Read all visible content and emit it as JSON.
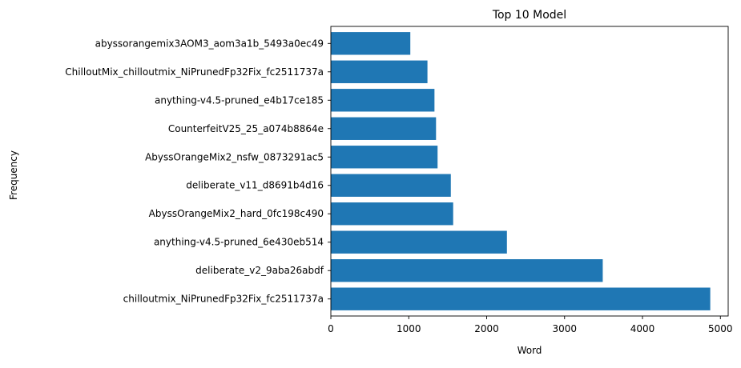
{
  "chart_data": {
    "type": "bar",
    "orientation": "horizontal",
    "title": "Top 10 Model",
    "xlabel": "Word",
    "ylabel": "Frequency",
    "xlim": [
      0,
      5100
    ],
    "xticks": [
      0,
      1000,
      2000,
      3000,
      4000,
      5000
    ],
    "categories": [
      "chilloutmix_NiPrunedFp32Fix_fc2511737a",
      "deliberate_v2_9aba26abdf",
      "anything-v4.5-pruned_6e430eb514",
      "AbyssOrangeMix2_hard_0fc198c490",
      "deliberate_v11_d8691b4d16",
      "AbyssOrangeMix2_nsfw_0873291ac5",
      "CounterfeitV25_25_a074b8864e",
      "anything-v4.5-pruned_e4b17ce185",
      "ChilloutMix_chilloutmix_NiPrunedFp32Fix_fc2511737a",
      "abyssorangemix3AOM3_aom3a1b_5493a0ec49"
    ],
    "values": [
      4870,
      3490,
      2260,
      1570,
      1540,
      1370,
      1350,
      1330,
      1240,
      1020
    ],
    "bar_color": "#1f77b4",
    "grid": false,
    "legend": "none"
  }
}
